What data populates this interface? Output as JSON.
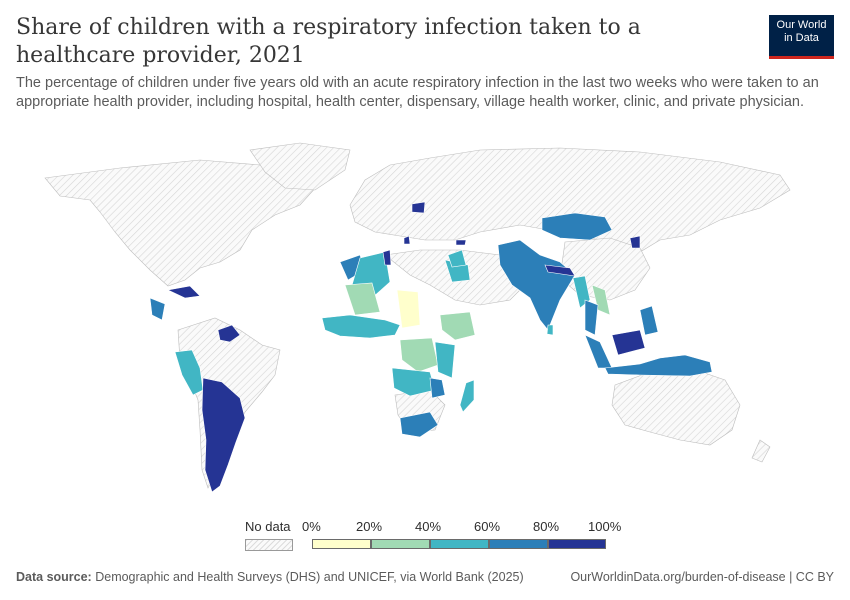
{
  "title": "Share of children with a respiratory infection taken to a healthcare provider, 2021",
  "subtitle": "The percentage of children under five years old with an acute respiratory infection in the last two weeks who were taken to an appropriate health provider, including hospital, health center, dispensary, village health worker, clinic, and private physician.",
  "logo": {
    "line1": "Our World",
    "line2": "in Data"
  },
  "legend": {
    "no_data_label": "No data",
    "bins": [
      {
        "label": "0%",
        "color": "#ffffcc"
      },
      {
        "label": "20%",
        "color": "#a1dab4"
      },
      {
        "label": "40%",
        "color": "#41b6c4"
      },
      {
        "label": "60%",
        "color": "#2c7fb8"
      },
      {
        "label": "80%",
        "color": "#253494"
      }
    ],
    "end_label": "100%",
    "colors": {
      "0-20": "#ffffcc",
      "20-40": "#a1dab4",
      "40-60": "#41b6c4",
      "60-80": "#2c7fb8",
      "80-100": "#253494",
      "no_data": "#f2f2f2"
    }
  },
  "footer": {
    "source_label": "Data source:",
    "source_text": "Demographic and Health Surveys (DHS) and UNICEF, via World Bank (2025)",
    "right_text": "OurWorldinData.org/burden-of-disease | CC BY"
  }
}
